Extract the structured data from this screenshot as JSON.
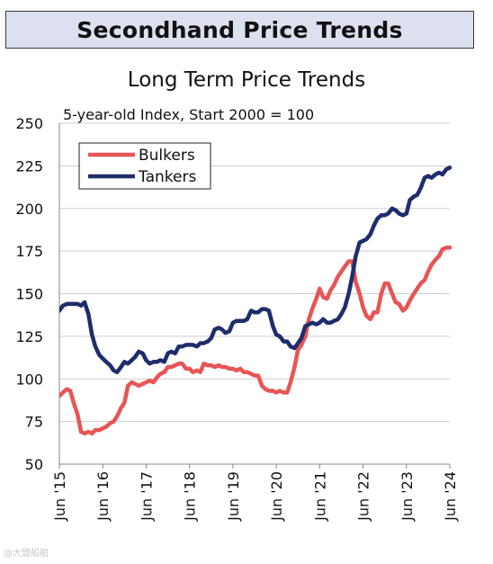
{
  "header": {
    "banner_title": "Secondhand Price Trends"
  },
  "watermark": "@大盟船舶",
  "chart_data": {
    "type": "line",
    "title": "Long Term Price Trends",
    "subtitle": "5-year-old Index, Start 2000 = 100",
    "xlabel": "",
    "ylabel": "",
    "ylim": [
      50,
      250
    ],
    "yticks": [
      50,
      75,
      100,
      125,
      150,
      175,
      200,
      225,
      250
    ],
    "xlim": [
      2015.5,
      2024.5
    ],
    "xtick_positions": [
      2015.5,
      2016.5,
      2017.5,
      2018.5,
      2019.5,
      2020.5,
      2021.5,
      2022.5,
      2023.5,
      2024.5
    ],
    "xtick_labels": [
      "Jun '15",
      "Jun '16",
      "Jun '17",
      "Jun '18",
      "Jun '19",
      "Jun '20",
      "Jun '21",
      "Jun '22",
      "Jun '23",
      "Jun '24"
    ],
    "grid": "horizontal",
    "legend_position": "top-left",
    "series": [
      {
        "name": "Bulkers",
        "color": "#e85555",
        "points": [
          [
            2015.5,
            90
          ],
          [
            2015.58,
            92
          ],
          [
            2015.67,
            94
          ],
          [
            2015.75,
            93
          ],
          [
            2015.83,
            86
          ],
          [
            2015.92,
            79
          ],
          [
            2016.0,
            69
          ],
          [
            2016.08,
            68
          ],
          [
            2016.17,
            69
          ],
          [
            2016.25,
            68
          ],
          [
            2016.33,
            70
          ],
          [
            2016.42,
            70
          ],
          [
            2016.5,
            71
          ],
          [
            2016.58,
            72
          ],
          [
            2016.67,
            74
          ],
          [
            2016.75,
            75
          ],
          [
            2016.83,
            78
          ],
          [
            2016.92,
            83
          ],
          [
            2017.0,
            86
          ],
          [
            2017.08,
            96
          ],
          [
            2017.17,
            98
          ],
          [
            2017.25,
            97
          ],
          [
            2017.33,
            96
          ],
          [
            2017.42,
            97
          ],
          [
            2017.5,
            98
          ],
          [
            2017.58,
            99
          ],
          [
            2017.67,
            98
          ],
          [
            2017.75,
            101
          ],
          [
            2017.83,
            103
          ],
          [
            2017.92,
            104
          ],
          [
            2018.0,
            107
          ],
          [
            2018.08,
            107
          ],
          [
            2018.17,
            108
          ],
          [
            2018.25,
            109
          ],
          [
            2018.33,
            109
          ],
          [
            2018.42,
            106
          ],
          [
            2018.5,
            106
          ],
          [
            2018.58,
            104
          ],
          [
            2018.67,
            105
          ],
          [
            2018.75,
            104
          ],
          [
            2018.83,
            109
          ],
          [
            2018.92,
            108
          ],
          [
            2019.0,
            108
          ],
          [
            2019.08,
            107
          ],
          [
            2019.17,
            108
          ],
          [
            2019.25,
            107
          ],
          [
            2019.33,
            107
          ],
          [
            2019.42,
            106
          ],
          [
            2019.5,
            106
          ],
          [
            2019.58,
            105
          ],
          [
            2019.67,
            106
          ],
          [
            2019.75,
            104
          ],
          [
            2019.83,
            104
          ],
          [
            2019.92,
            103
          ],
          [
            2020.0,
            102
          ],
          [
            2020.08,
            102
          ],
          [
            2020.17,
            96
          ],
          [
            2020.25,
            94
          ],
          [
            2020.33,
            93
          ],
          [
            2020.42,
            93
          ],
          [
            2020.5,
            92
          ],
          [
            2020.58,
            93
          ],
          [
            2020.67,
            92
          ],
          [
            2020.75,
            92
          ],
          [
            2020.83,
            98
          ],
          [
            2020.92,
            107
          ],
          [
            2021.0,
            117
          ],
          [
            2021.08,
            120
          ],
          [
            2021.17,
            125
          ],
          [
            2021.25,
            135
          ],
          [
            2021.33,
            141
          ],
          [
            2021.42,
            147
          ],
          [
            2021.5,
            153
          ],
          [
            2021.58,
            148
          ],
          [
            2021.67,
            147
          ],
          [
            2021.75,
            152
          ],
          [
            2021.83,
            155
          ],
          [
            2021.92,
            160
          ],
          [
            2022.0,
            163
          ],
          [
            2022.08,
            166
          ],
          [
            2022.17,
            169
          ],
          [
            2022.25,
            169
          ],
          [
            2022.33,
            157
          ],
          [
            2022.42,
            150
          ],
          [
            2022.5,
            142
          ],
          [
            2022.58,
            137
          ],
          [
            2022.67,
            135
          ],
          [
            2022.75,
            139
          ],
          [
            2022.83,
            139
          ],
          [
            2022.92,
            150
          ],
          [
            2023.0,
            156
          ],
          [
            2023.08,
            156
          ],
          [
            2023.17,
            150
          ],
          [
            2023.25,
            145
          ],
          [
            2023.33,
            144
          ],
          [
            2023.42,
            140
          ],
          [
            2023.5,
            142
          ],
          [
            2023.58,
            146
          ],
          [
            2023.67,
            150
          ],
          [
            2023.75,
            153
          ],
          [
            2023.83,
            156
          ],
          [
            2023.92,
            158
          ],
          [
            2024.0,
            163
          ],
          [
            2024.08,
            167
          ],
          [
            2024.17,
            170
          ],
          [
            2024.25,
            172
          ],
          [
            2024.33,
            176
          ],
          [
            2024.42,
            177
          ],
          [
            2024.5,
            177
          ]
        ]
      },
      {
        "name": "Tankers",
        "color": "#1f2d6b",
        "points": [
          [
            2015.5,
            140
          ],
          [
            2015.58,
            143
          ],
          [
            2015.67,
            144
          ],
          [
            2015.75,
            144
          ],
          [
            2015.83,
            144
          ],
          [
            2015.92,
            144
          ],
          [
            2016.0,
            143
          ],
          [
            2016.08,
            145
          ],
          [
            2016.17,
            138
          ],
          [
            2016.25,
            126
          ],
          [
            2016.33,
            119
          ],
          [
            2016.42,
            114
          ],
          [
            2016.5,
            112
          ],
          [
            2016.58,
            110
          ],
          [
            2016.67,
            108
          ],
          [
            2016.75,
            105
          ],
          [
            2016.83,
            104
          ],
          [
            2016.92,
            107
          ],
          [
            2017.0,
            110
          ],
          [
            2017.08,
            109
          ],
          [
            2017.17,
            111
          ],
          [
            2017.25,
            113
          ],
          [
            2017.33,
            116
          ],
          [
            2017.42,
            115
          ],
          [
            2017.5,
            111
          ],
          [
            2017.58,
            109
          ],
          [
            2017.67,
            110
          ],
          [
            2017.75,
            110
          ],
          [
            2017.83,
            111
          ],
          [
            2017.92,
            110
          ],
          [
            2018.0,
            115
          ],
          [
            2018.08,
            116
          ],
          [
            2018.17,
            115
          ],
          [
            2018.25,
            119
          ],
          [
            2018.33,
            119
          ],
          [
            2018.42,
            120
          ],
          [
            2018.5,
            120
          ],
          [
            2018.58,
            120
          ],
          [
            2018.67,
            119
          ],
          [
            2018.75,
            121
          ],
          [
            2018.83,
            121
          ],
          [
            2018.92,
            122
          ],
          [
            2019.0,
            124
          ],
          [
            2019.08,
            129
          ],
          [
            2019.17,
            130
          ],
          [
            2019.25,
            129
          ],
          [
            2019.33,
            127
          ],
          [
            2019.42,
            128
          ],
          [
            2019.5,
            133
          ],
          [
            2019.58,
            134
          ],
          [
            2019.67,
            134
          ],
          [
            2019.75,
            134
          ],
          [
            2019.83,
            135
          ],
          [
            2019.92,
            140
          ],
          [
            2020.0,
            139
          ],
          [
            2020.08,
            139
          ],
          [
            2020.17,
            141
          ],
          [
            2020.25,
            141
          ],
          [
            2020.33,
            140
          ],
          [
            2020.42,
            131
          ],
          [
            2020.5,
            126
          ],
          [
            2020.58,
            125
          ],
          [
            2020.67,
            122
          ],
          [
            2020.75,
            122
          ],
          [
            2020.83,
            119
          ],
          [
            2020.92,
            118
          ],
          [
            2021.0,
            121
          ],
          [
            2021.08,
            124
          ],
          [
            2021.17,
            131
          ],
          [
            2021.25,
            132
          ],
          [
            2021.33,
            133
          ],
          [
            2021.42,
            132
          ],
          [
            2021.5,
            133
          ],
          [
            2021.58,
            135
          ],
          [
            2021.67,
            133
          ],
          [
            2021.75,
            133
          ],
          [
            2021.83,
            134
          ],
          [
            2021.92,
            135
          ],
          [
            2022.0,
            138
          ],
          [
            2022.08,
            142
          ],
          [
            2022.17,
            150
          ],
          [
            2022.25,
            160
          ],
          [
            2022.33,
            172
          ],
          [
            2022.42,
            180
          ],
          [
            2022.5,
            181
          ],
          [
            2022.58,
            182
          ],
          [
            2022.67,
            185
          ],
          [
            2022.75,
            190
          ],
          [
            2022.83,
            194
          ],
          [
            2022.92,
            196
          ],
          [
            2023.0,
            196
          ],
          [
            2023.08,
            197
          ],
          [
            2023.17,
            200
          ],
          [
            2023.25,
            199
          ],
          [
            2023.33,
            197
          ],
          [
            2023.42,
            196
          ],
          [
            2023.5,
            197
          ],
          [
            2023.58,
            205
          ],
          [
            2023.67,
            207
          ],
          [
            2023.75,
            208
          ],
          [
            2023.83,
            212
          ],
          [
            2023.92,
            218
          ],
          [
            2024.0,
            219
          ],
          [
            2024.08,
            218
          ],
          [
            2024.17,
            220
          ],
          [
            2024.25,
            221
          ],
          [
            2024.33,
            220
          ],
          [
            2024.42,
            223
          ],
          [
            2024.5,
            224
          ]
        ]
      }
    ]
  }
}
